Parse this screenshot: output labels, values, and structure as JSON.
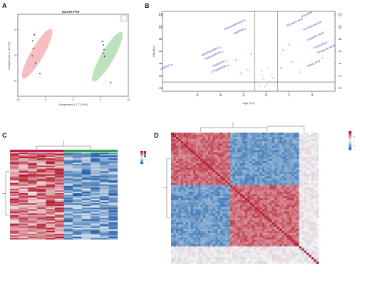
{
  "chart_data": [
    {
      "panel": "A",
      "type": "scatter",
      "title": "Scores Plot",
      "xlabel": "Component 1 ( 71.8 %)",
      "ylabel": "Component 2 ( 8.2 %)",
      "xlim": [
        -10,
        10
      ],
      "ylim": [
        -8,
        8
      ],
      "xticks": [
        -10,
        -5,
        0,
        5,
        10
      ],
      "yticks": [
        -5,
        0,
        5
      ],
      "legend": {
        "position": "top-right",
        "entries": [
          "·",
          "·"
        ]
      },
      "ellipses": [
        {
          "group": "pink",
          "color": "#f4a8ae",
          "center": [
            -6.5,
            0.3
          ],
          "angle_deg": -60
        },
        {
          "group": "green",
          "color": "#a8d8a8",
          "center": [
            6.2,
            -0.3
          ],
          "angle_deg": -60
        }
      ],
      "points": [
        {
          "x": -7.0,
          "y": 4.0,
          "label": "·"
        },
        {
          "x": -7.3,
          "y": 2.8,
          "label": "·"
        },
        {
          "x": -7.2,
          "y": 1.3,
          "label": "·"
        },
        {
          "x": -7.4,
          "y": -0.1,
          "label": "·"
        },
        {
          "x": -6.8,
          "y": -1.5,
          "label": "·"
        },
        {
          "x": -6.0,
          "y": -3.6,
          "label": "·"
        },
        {
          "x": 5.3,
          "y": 2.7,
          "label": "·"
        },
        {
          "x": 5.5,
          "y": 2.0,
          "label": "·"
        },
        {
          "x": 5.6,
          "y": 1.1,
          "label": "·"
        },
        {
          "x": 5.4,
          "y": 0.4,
          "label": "·"
        },
        {
          "x": 5.7,
          "y": -0.2,
          "label": "·"
        },
        {
          "x": 6.8,
          "y": -5.3,
          "label": "·"
        }
      ]
    },
    {
      "panel": "B",
      "type": "scatter",
      "title": "",
      "xlabel": "log2 (FC)",
      "ylabel": "-log10(p)",
      "xlim": [
        -9,
        6
      ],
      "ylim": [
        -0.5,
        12.5
      ],
      "xticks": [
        -6,
        -4,
        -2,
        0,
        2,
        4
      ],
      "yticks": [
        0,
        2,
        4,
        6,
        8,
        10,
        12
      ],
      "thresholds": {
        "x": [
          -1,
          1
        ],
        "y": 1
      },
      "labeled_points": [
        {
          "x": -1.8,
          "y": 11.0,
          "label": "Chloramphenicol",
          "color": "#ff1493"
        },
        {
          "x": -1.8,
          "y": 9.6,
          "label": "Xanthine",
          "color": "#ff1493"
        },
        {
          "x": -4.0,
          "y": 6.6,
          "label": "Acetylcarnitine",
          "color": "#ff1493"
        },
        {
          "x": -3.8,
          "y": 5.9,
          "label": "Hypoxanthine",
          "color": "#ff1493"
        },
        {
          "x": -3.5,
          "y": 4.4,
          "label": "Histamine",
          "color": "#ff1493"
        },
        {
          "x": -3.3,
          "y": 3.7,
          "label": "L-Tryptophan",
          "color": "#ff1493"
        },
        {
          "x": -8.2,
          "y": 3.8,
          "label": "Creatine",
          "color": "#ff1493"
        },
        {
          "x": 1.8,
          "y": 10.2,
          "label": "Fumaric Acid",
          "color": "#ff1493"
        },
        {
          "x": 3.1,
          "y": 11.7,
          "label": "Cytidine",
          "color": "#ff1493"
        },
        {
          "x": 3.3,
          "y": 9.6,
          "label": "L-Homoserine",
          "color": "#ff1493"
        },
        {
          "x": 3.6,
          "y": 7.9,
          "label": "Aspartic Acid",
          "color": "#ff1493"
        },
        {
          "x": 4.2,
          "y": 6.6,
          "label": "Citric Acid",
          "color": "#ff1493"
        },
        {
          "x": 4.5,
          "y": 5.8,
          "label": "Pipecolic Acid",
          "color": "#ff1493"
        },
        {
          "x": 3.6,
          "y": 3.6,
          "label": "Malic Acid",
          "color": "#ff1493"
        }
      ],
      "other_points": [
        {
          "x": -0.4,
          "y": 2.8,
          "color": "#999999"
        },
        {
          "x": -0.2,
          "y": 1.5,
          "color": "#999999"
        },
        {
          "x": 0.1,
          "y": 0.6,
          "color": "#999999"
        },
        {
          "x": 0.3,
          "y": 1.2,
          "color": "#999999"
        },
        {
          "x": -0.7,
          "y": 0.9,
          "color": "#999999"
        },
        {
          "x": 0.5,
          "y": 2.2,
          "color": "#999999"
        },
        {
          "x": -0.1,
          "y": 0.3,
          "color": "#999999"
        },
        {
          "x": 0.7,
          "y": 0.5,
          "color": "#999999"
        },
        {
          "x": -0.5,
          "y": 0.4,
          "color": "#999999"
        },
        {
          "x": 0.2,
          "y": 3.2,
          "color": "#999999"
        },
        {
          "x": -0.3,
          "y": 2.0,
          "color": "#999999"
        },
        {
          "x": 0.6,
          "y": 1.7,
          "color": "#999999"
        },
        {
          "x": -2.6,
          "y": 4.6,
          "color": "#ff1493"
        },
        {
          "x": -1.6,
          "y": 3.0,
          "color": "#ff1493"
        },
        {
          "x": -2.2,
          "y": 2.4,
          "color": "#ff1493"
        },
        {
          "x": -1.3,
          "y": 5.6,
          "color": "#ff1493"
        },
        {
          "x": 1.5,
          "y": 6.2,
          "color": "#ff1493"
        },
        {
          "x": 2.3,
          "y": 4.3,
          "color": "#ff1493"
        },
        {
          "x": 1.3,
          "y": 3.3,
          "color": "#ff1493"
        },
        {
          "x": 2.9,
          "y": 2.6,
          "color": "#ff1493"
        },
        {
          "x": 2.0,
          "y": 7.1,
          "color": "#ff1493"
        },
        {
          "x": 4.9,
          "y": 4.9,
          "color": "#ff1493"
        }
      ]
    },
    {
      "panel": "C",
      "type": "heatmap",
      "n_rows": 60,
      "n_cols": 12,
      "column_groups": [
        {
          "color": "#c2185b",
          "count": 6
        },
        {
          "color": "#2e9e3e",
          "count": 6
        }
      ],
      "color_scale": {
        "low": "#1f5fa8",
        "mid": "#f7f7f7",
        "high": "#b2182b",
        "ticks": [
          "4",
          "2",
          "0",
          "-2"
        ]
      },
      "row_labels": [
        "·"
      ],
      "col_labels": [
        "·"
      ]
    },
    {
      "panel": "D",
      "type": "heatmap",
      "subtype": "correlation",
      "n": 60,
      "color_scale": {
        "low": "#2166ac",
        "mid": "#f7f7f7",
        "high": "#b2182b",
        "ticks": [
          "1",
          "0.5",
          "0",
          "-0.5",
          "-1"
        ]
      },
      "labels": [
        "·"
      ]
    }
  ],
  "panels": {
    "a": "A",
    "b": "B",
    "c": "C",
    "d": "D"
  }
}
